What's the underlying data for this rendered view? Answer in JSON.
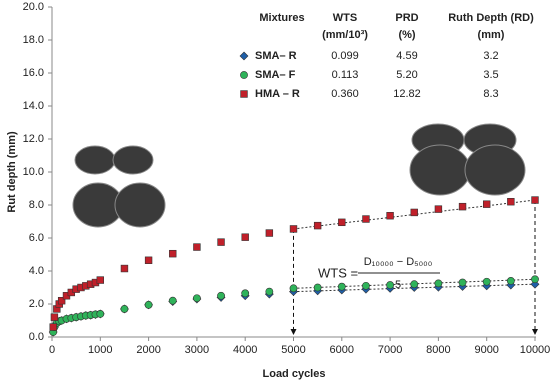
{
  "chart_data": {
    "type": "scatter",
    "x_label": "Load cycles",
    "y_label": "Rut depth (mm)",
    "x": [
      25,
      50,
      100,
      150,
      200,
      300,
      400,
      500,
      600,
      700,
      800,
      900,
      1000,
      1500,
      2000,
      2500,
      3000,
      3500,
      4000,
      4500,
      5000,
      5500,
      6000,
      6500,
      7000,
      7500,
      8000,
      8500,
      9000,
      9500,
      10000
    ],
    "series": [
      {
        "name": "SMA– R",
        "color": "#1f5fa8",
        "marker": "diamond",
        "values": [
          0.3,
          0.6,
          0.85,
          0.95,
          1.0,
          1.1,
          1.15,
          1.2,
          1.25,
          1.3,
          1.32,
          1.36,
          1.4,
          1.7,
          1.95,
          2.15,
          2.3,
          2.4,
          2.5,
          2.6,
          2.75,
          2.8,
          2.85,
          2.9,
          2.95,
          3.0,
          3.02,
          3.06,
          3.1,
          3.15,
          3.2
        ]
      },
      {
        "name": "SMA– F",
        "color": "#2fb35a",
        "marker": "circle",
        "values": [
          0.3,
          0.6,
          0.85,
          0.95,
          1.0,
          1.1,
          1.15,
          1.2,
          1.25,
          1.3,
          1.33,
          1.37,
          1.4,
          1.7,
          1.95,
          2.2,
          2.35,
          2.5,
          2.65,
          2.75,
          2.95,
          3.0,
          3.05,
          3.1,
          3.15,
          3.2,
          3.25,
          3.3,
          3.35,
          3.4,
          3.5
        ]
      },
      {
        "name": "HMA – R",
        "color": "#c0202a",
        "marker": "square",
        "values": [
          0.6,
          1.2,
          1.7,
          2.0,
          2.2,
          2.5,
          2.7,
          2.9,
          3.0,
          3.1,
          3.2,
          3.3,
          3.45,
          4.15,
          4.65,
          5.05,
          5.45,
          5.75,
          6.05,
          6.3,
          6.55,
          6.75,
          6.95,
          7.15,
          7.35,
          7.55,
          7.75,
          7.9,
          8.05,
          8.2,
          8.3
        ]
      }
    ],
    "xlim": [
      0,
      10000
    ],
    "xticks": [
      0,
      1000,
      2000,
      3000,
      4000,
      5000,
      6000,
      7000,
      8000,
      9000,
      10000
    ],
    "ylim": [
      0,
      20
    ],
    "yticks": [
      {
        "value": 0,
        "label": "0.0"
      },
      {
        "value": 2,
        "label": "2.0"
      },
      {
        "value": 4,
        "label": "4.0"
      },
      {
        "value": 6,
        "label": "6.0"
      },
      {
        "value": 8,
        "label": "8.0"
      },
      {
        "value": 10,
        "label": "10.0"
      },
      {
        "value": 12,
        "label": "12.0"
      },
      {
        "value": 14,
        "label": "14.0"
      },
      {
        "value": 16,
        "label": "16.0"
      },
      {
        "value": 18,
        "label": "18.0"
      },
      {
        "value": 20,
        "label": "20.0"
      }
    ],
    "grid": false,
    "table": {
      "headers": [
        [
          "Mixtures",
          ""
        ],
        [
          "WTS",
          "(mm/10³)"
        ],
        [
          "PRD",
          "(%)"
        ],
        [
          "Ruth Depth (RD)",
          "(mm)"
        ]
      ],
      "rows": [
        [
          "0.099",
          "4.59",
          "3.2"
        ],
        [
          "0.113",
          "5.20",
          "3.5"
        ],
        [
          "0.360",
          "12.82",
          "8.3"
        ]
      ]
    },
    "formula": {
      "lhs": "WTS =",
      "numerator": "D₁₀₀₀₀ − D₅₀₀₀",
      "denominator": "5"
    },
    "wts_interval": [
      5000,
      10000
    ]
  }
}
